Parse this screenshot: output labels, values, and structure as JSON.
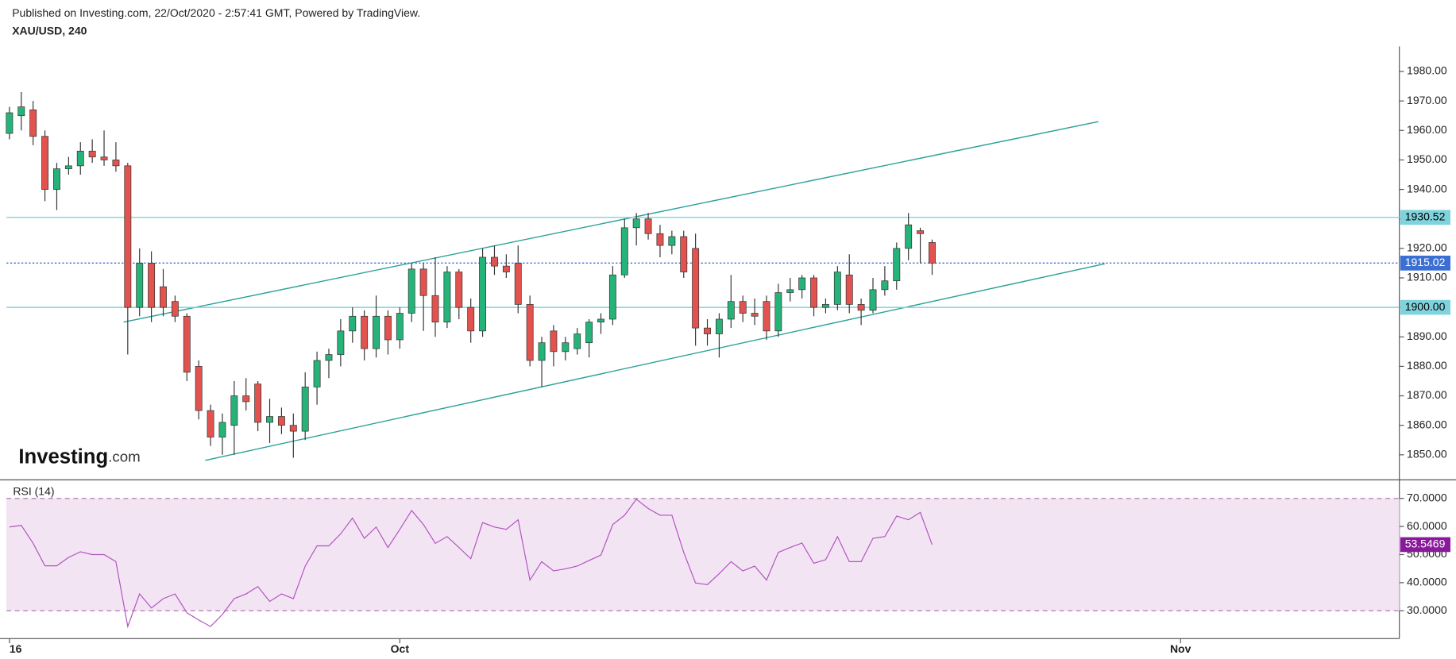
{
  "header": {
    "published": "Published on Investing.com, 22/Oct/2020 - 2:57:41 GMT, Powered by TradingView.",
    "symbol": "XAU/USD, 240"
  },
  "logo": {
    "brand": "Investing",
    "suffix": ".com"
  },
  "chart_data": [
    {
      "type": "candlestick",
      "up_color": "#26b37a",
      "down_color": "#e2534f",
      "wick_color": "#333333",
      "x": [
        0,
        2,
        4,
        6,
        8,
        10,
        12,
        14,
        16,
        18,
        20,
        22,
        24,
        26,
        28,
        30,
        32,
        34,
        36,
        38,
        40,
        42,
        44,
        46,
        48,
        50,
        52,
        54,
        56,
        58,
        60,
        62,
        64,
        66,
        68,
        70,
        72,
        74,
        76,
        78,
        80,
        82,
        84,
        86,
        88,
        90,
        92,
        94,
        96,
        98,
        100,
        102,
        104,
        106,
        108,
        110,
        112,
        114,
        116,
        118,
        120,
        122,
        124,
        126,
        128,
        130,
        132,
        134,
        136,
        138,
        140,
        142,
        144,
        146,
        148,
        150,
        152,
        154,
        156
      ],
      "open": [
        1959,
        1965,
        1967,
        1958,
        1940,
        1947,
        1948,
        1953,
        1951,
        1950,
        1948,
        1900,
        1915,
        1907,
        1902,
        1897,
        1880,
        1865,
        1856,
        1860,
        1870,
        1874,
        1861,
        1863,
        1860,
        1858,
        1873,
        1882,
        1884,
        1892,
        1897,
        1886,
        1897,
        1889,
        1898,
        1913,
        1904,
        1895,
        1912,
        1900,
        1892,
        1917,
        1914,
        1915,
        1901,
        1882,
        1892,
        1885,
        1886,
        1888,
        1895,
        1896,
        1911,
        1927,
        1930,
        1925,
        1921,
        1924,
        1920,
        1893,
        1891,
        1896,
        1902,
        1898,
        1902,
        1892,
        1905,
        1906,
        1910,
        1900,
        1901,
        1911,
        1901,
        1899,
        1906,
        1909,
        1920,
        1926,
        1922
      ],
      "high": [
        1968,
        1973,
        1970,
        1960,
        1949,
        1951,
        1956,
        1957,
        1960,
        1956,
        1949,
        1920,
        1919,
        1913,
        1904,
        1898,
        1882,
        1867,
        1864,
        1875,
        1876,
        1875,
        1869,
        1866,
        1864,
        1878,
        1885,
        1886,
        1896,
        1900,
        1899,
        1904,
        1899,
        1900,
        1915,
        1915,
        1917,
        1914,
        1913,
        1903,
        1920,
        1921,
        1918,
        1921,
        1904,
        1890,
        1894,
        1890,
        1893,
        1896,
        1898,
        1914,
        1930,
        1932,
        1932,
        1928,
        1926,
        1926,
        1925,
        1896,
        1898,
        1911,
        1904,
        1903,
        1904,
        1908,
        1910,
        1911,
        1911,
        1903,
        1914,
        1918,
        1903,
        1910,
        1914,
        1922,
        1932,
        1927,
        1923
      ],
      "low": [
        1957,
        1960,
        1955,
        1936,
        1933,
        1945,
        1945,
        1949,
        1948,
        1946,
        1884,
        1897,
        1895,
        1897,
        1895,
        1875,
        1862,
        1853,
        1850,
        1850,
        1865,
        1858,
        1854,
        1857,
        1849,
        1855,
        1867,
        1876,
        1880,
        1888,
        1882,
        1883,
        1884,
        1886,
        1895,
        1892,
        1890,
        1893,
        1896,
        1888,
        1890,
        1911,
        1910,
        1898,
        1880,
        1873,
        1880,
        1882,
        1884,
        1883,
        1891,
        1894,
        1910,
        1921,
        1923,
        1917,
        1918,
        1910,
        1887,
        1887,
        1883,
        1893,
        1895,
        1894,
        1889,
        1890,
        1902,
        1903,
        1897,
        1898,
        1899,
        1898,
        1894,
        1898,
        1904,
        1906,
        1916,
        1915,
        1911
      ],
      "close": [
        1966,
        1968,
        1958,
        1940,
        1947,
        1948,
        1953,
        1951,
        1950,
        1948,
        1900,
        1915,
        1900,
        1900,
        1897,
        1878,
        1865,
        1856,
        1861,
        1870,
        1868,
        1861,
        1863,
        1860,
        1858,
        1873,
        1882,
        1884,
        1892,
        1897,
        1886,
        1897,
        1889,
        1898,
        1913,
        1904,
        1895,
        1912,
        1900,
        1892,
        1917,
        1914,
        1912,
        1901,
        1882,
        1888,
        1885,
        1888,
        1891,
        1895,
        1896,
        1911,
        1927,
        1930,
        1925,
        1921,
        1924,
        1912,
        1893,
        1891,
        1896,
        1902,
        1898,
        1897,
        1892,
        1905,
        1906,
        1910,
        1900,
        1901,
        1912,
        1901,
        1899,
        1906,
        1909,
        1920,
        1928,
        1925,
        1915.02
      ],
      "xlim": [
        -0.5,
        235
      ],
      "xticks": [
        {
          "value": 0,
          "label": "16"
        },
        {
          "value": 66,
          "label": "Oct"
        },
        {
          "value": 198,
          "label": "Nov"
        }
      ],
      "ylim": [
        1841.5,
        1988.5
      ],
      "yticks": [
        {
          "value": 1850,
          "label": "1850.00"
        },
        {
          "value": 1860,
          "label": "1860.00"
        },
        {
          "value": 1870,
          "label": "1870.00"
        },
        {
          "value": 1880,
          "label": "1880.00"
        },
        {
          "value": 1890,
          "label": "1890.00"
        },
        {
          "value": 1900,
          "label": "1900.00"
        },
        {
          "value": 1910,
          "label": "1910.00"
        },
        {
          "value": 1920,
          "label": "1920.00"
        },
        {
          "value": 1930,
          "label": "1930.00"
        },
        {
          "value": 1940,
          "label": "1940.00"
        },
        {
          "value": 1950,
          "label": "1950.00"
        },
        {
          "value": 1960,
          "label": "1960.00"
        },
        {
          "value": 1970,
          "label": "1970.00"
        },
        {
          "value": 1980,
          "label": "1980.00"
        }
      ],
      "levels": [
        {
          "value": 1930.52,
          "label": "1930.52",
          "color": "#7fd3dc",
          "text_color": "#000000",
          "style": "solid"
        },
        {
          "value": 1915.02,
          "label": "1915.02",
          "color": "#3b6fd4",
          "text_color": "#ffffff",
          "style": "dotted"
        },
        {
          "value": 1900,
          "label": "1900.00",
          "color": "#7fd3dc",
          "text_color": "#000000",
          "style": "solid"
        }
      ],
      "trendlines": [
        {
          "x": [
            19.3,
            184.1
          ],
          "y": [
            1895.0,
            1963.0
          ],
          "color": "#2aa198"
        },
        {
          "x": [
            33.1,
            185.2
          ],
          "y": [
            1848.1,
            1914.8
          ],
          "color": "#2aa198"
        }
      ]
    },
    {
      "type": "line",
      "title": "RSI (14)",
      "color": "#b052c0",
      "x": [
        0,
        2,
        4,
        6,
        8,
        10,
        12,
        14,
        16,
        18,
        20,
        22,
        24,
        26,
        28,
        30,
        32,
        34,
        36,
        38,
        40,
        42,
        44,
        46,
        48,
        50,
        52,
        54,
        56,
        58,
        60,
        62,
        64,
        66,
        68,
        70,
        72,
        74,
        76,
        78,
        80,
        82,
        84,
        86,
        88,
        90,
        92,
        94,
        96,
        98,
        100,
        102,
        104,
        106,
        108,
        110,
        112,
        114,
        116,
        118,
        120,
        122,
        124,
        126,
        128,
        130,
        132,
        134,
        136,
        138,
        140,
        142,
        144,
        146,
        148,
        150,
        152,
        154,
        156
      ],
      "values": [
        59.8,
        60.4,
        54,
        46,
        46,
        49,
        51,
        50,
        50,
        47.5,
        24.4,
        36,
        31,
        34.3,
        36,
        29.3,
        26.7,
        24.4,
        28.7,
        34.3,
        36,
        38.6,
        33.3,
        36,
        34.3,
        45.9,
        53.1,
        53.1,
        57.4,
        63,
        55.8,
        59.8,
        52.5,
        59,
        65.7,
        60.7,
        54,
        56.4,
        52.5,
        48.5,
        61.4,
        59.8,
        59,
        62.4,
        40.9,
        47.5,
        44.2,
        44.9,
        45.9,
        47.9,
        49.8,
        60.7,
        64,
        69.7,
        66.4,
        64,
        64,
        50.8,
        39.9,
        39.3,
        43.2,
        47.5,
        44.2,
        45.9,
        40.9,
        50.8,
        52.5,
        54.1,
        46.9,
        48.2,
        56.4,
        47.5,
        47.5,
        55.8,
        56.4,
        63.7,
        62.4,
        65,
        53.5469
      ],
      "xlim": [
        -0.5,
        235
      ],
      "ylim": [
        20.1,
        76.6
      ],
      "yticks": [
        {
          "value": 30,
          "label": "30.0000"
        },
        {
          "value": 40,
          "label": "40.0000"
        },
        {
          "value": 50,
          "label": "50.0000"
        },
        {
          "value": 60,
          "label": "60.0000"
        },
        {
          "value": 70,
          "label": "70.0000"
        }
      ],
      "band": [
        30,
        70
      ],
      "band_color": "#f3e4f3",
      "last_label": {
        "value": 53.5469,
        "label": "53.5469",
        "color": "#8a1a9b"
      }
    }
  ]
}
